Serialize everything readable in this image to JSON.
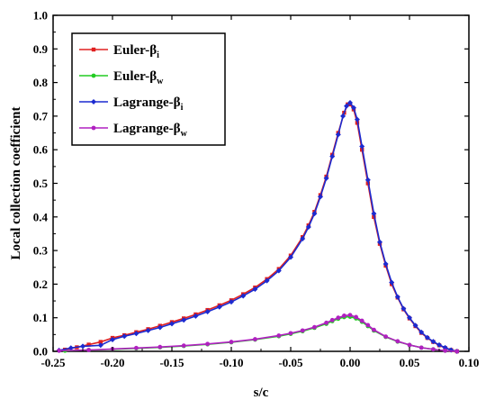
{
  "chart_data": {
    "type": "line",
    "xlabel": "s/c",
    "ylabel": "Local collection coefficient",
    "xlim": [
      -0.25,
      0.1
    ],
    "ylim": [
      0.0,
      1.0
    ],
    "xticks": [
      -0.25,
      -0.2,
      -0.15,
      -0.1,
      -0.05,
      0.0,
      0.05,
      0.1
    ],
    "xtick_labels": [
      "-0.25",
      "-0.20",
      "-0.15",
      "-0.10",
      "-0.05",
      "0.00",
      "0.05",
      "0.10"
    ],
    "yticks": [
      0.0,
      0.1,
      0.2,
      0.3,
      0.4,
      0.5,
      0.6,
      0.7,
      0.8,
      0.9,
      1.0
    ],
    "ytick_labels": [
      "0.0",
      "0.1",
      "0.2",
      "0.3",
      "0.4",
      "0.5",
      "0.6",
      "0.7",
      "0.8",
      "0.9",
      "1.0"
    ],
    "grid": false,
    "legend_position": "top-left",
    "series": [
      {
        "name": "Euler-β",
        "sub": "i",
        "color": "#e02020",
        "marker": "square",
        "x": [
          -0.24,
          -0.23,
          -0.22,
          -0.21,
          -0.2,
          -0.19,
          -0.18,
          -0.17,
          -0.16,
          -0.15,
          -0.14,
          -0.13,
          -0.12,
          -0.11,
          -0.1,
          -0.09,
          -0.08,
          -0.07,
          -0.06,
          -0.05,
          -0.04,
          -0.035,
          -0.03,
          -0.025,
          -0.02,
          -0.015,
          -0.01,
          -0.005,
          -0.002,
          0.0,
          0.003,
          0.006,
          0.01,
          0.015,
          0.02,
          0.025,
          0.03,
          0.035,
          0.04,
          0.045,
          0.05,
          0.055,
          0.06,
          0.065,
          0.07,
          0.075,
          0.08,
          0.085,
          0.09
        ],
        "y": [
          0.005,
          0.012,
          0.02,
          0.028,
          0.04,
          0.048,
          0.057,
          0.066,
          0.076,
          0.087,
          0.098,
          0.11,
          0.123,
          0.137,
          0.152,
          0.17,
          0.19,
          0.215,
          0.245,
          0.285,
          0.34,
          0.375,
          0.415,
          0.465,
          0.52,
          0.585,
          0.65,
          0.71,
          0.735,
          0.735,
          0.72,
          0.68,
          0.6,
          0.5,
          0.4,
          0.32,
          0.255,
          0.2,
          0.16,
          0.125,
          0.098,
          0.075,
          0.055,
          0.04,
          0.028,
          0.018,
          0.01,
          0.004,
          0.0
        ]
      },
      {
        "name": "Euler-β",
        "sub": "w",
        "color": "#22cc22",
        "marker": "circle",
        "x": [
          -0.24,
          -0.22,
          -0.2,
          -0.18,
          -0.16,
          -0.14,
          -0.12,
          -0.1,
          -0.08,
          -0.06,
          -0.05,
          -0.04,
          -0.03,
          -0.02,
          -0.015,
          -0.01,
          -0.005,
          0.0,
          0.005,
          0.01,
          0.015,
          0.02,
          0.03,
          0.04,
          0.05,
          0.06,
          0.07,
          0.08,
          0.09
        ],
        "y": [
          0.002,
          0.004,
          0.006,
          0.009,
          0.012,
          0.016,
          0.021,
          0.027,
          0.035,
          0.045,
          0.052,
          0.06,
          0.07,
          0.082,
          0.09,
          0.097,
          0.102,
          0.103,
          0.098,
          0.088,
          0.075,
          0.062,
          0.043,
          0.029,
          0.019,
          0.011,
          0.006,
          0.002,
          0.0
        ]
      },
      {
        "name": "Lagrange-β",
        "sub": "i",
        "color": "#1c2ad0",
        "marker": "diamond",
        "x": [
          -0.245,
          -0.235,
          -0.225,
          -0.21,
          -0.2,
          -0.19,
          -0.18,
          -0.17,
          -0.16,
          -0.15,
          -0.14,
          -0.13,
          -0.12,
          -0.11,
          -0.1,
          -0.09,
          -0.08,
          -0.07,
          -0.06,
          -0.05,
          -0.04,
          -0.035,
          -0.03,
          -0.025,
          -0.02,
          -0.015,
          -0.01,
          -0.006,
          -0.003,
          0.0,
          0.003,
          0.006,
          0.01,
          0.015,
          0.02,
          0.025,
          0.03,
          0.035,
          0.04,
          0.045,
          0.05,
          0.055,
          0.06,
          0.065,
          0.07,
          0.075,
          0.08,
          0.085,
          0.09
        ],
        "y": [
          0.003,
          0.01,
          0.015,
          0.018,
          0.035,
          0.045,
          0.053,
          0.062,
          0.071,
          0.082,
          0.093,
          0.105,
          0.118,
          0.132,
          0.147,
          0.165,
          0.185,
          0.21,
          0.24,
          0.28,
          0.335,
          0.37,
          0.41,
          0.46,
          0.515,
          0.58,
          0.645,
          0.7,
          0.73,
          0.74,
          0.725,
          0.69,
          0.61,
          0.51,
          0.41,
          0.325,
          0.26,
          0.205,
          0.162,
          0.127,
          0.1,
          0.077,
          0.057,
          0.041,
          0.029,
          0.019,
          0.011,
          0.004,
          0.0
        ]
      },
      {
        "name": "Lagrange-β",
        "sub": "w",
        "color": "#b020c0",
        "marker": "circle",
        "x": [
          -0.245,
          -0.22,
          -0.2,
          -0.18,
          -0.16,
          -0.14,
          -0.12,
          -0.1,
          -0.08,
          -0.06,
          -0.05,
          -0.04,
          -0.03,
          -0.02,
          -0.015,
          -0.01,
          -0.005,
          0.0,
          0.005,
          0.01,
          0.015,
          0.02,
          0.03,
          0.04,
          0.05,
          0.06,
          0.07,
          0.08,
          0.09
        ],
        "y": [
          0.002,
          0.004,
          0.007,
          0.01,
          0.013,
          0.017,
          0.022,
          0.028,
          0.036,
          0.047,
          0.054,
          0.062,
          0.072,
          0.085,
          0.093,
          0.1,
          0.106,
          0.108,
          0.102,
          0.091,
          0.078,
          0.064,
          0.044,
          0.03,
          0.019,
          0.011,
          0.006,
          0.002,
          0.0
        ]
      }
    ]
  }
}
